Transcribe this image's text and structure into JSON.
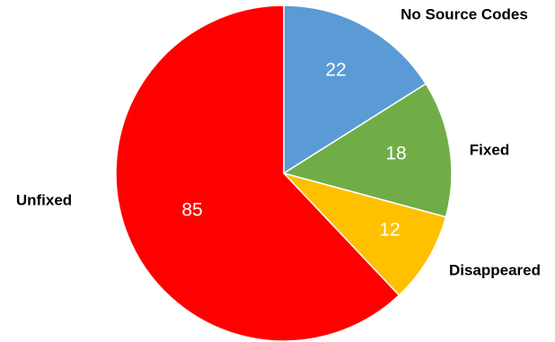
{
  "chart_data": {
    "type": "pie",
    "start_angle_deg": 0,
    "direction": "clockwise",
    "slices": [
      {
        "label": "No Source Codes",
        "value": 22,
        "color": "#5b9bd5"
      },
      {
        "label": "Fixed",
        "value": 18,
        "color": "#70ad47"
      },
      {
        "label": "Disappeared",
        "value": 12,
        "color": "#ffc000"
      },
      {
        "label": "Unfixed",
        "value": 85,
        "color": "#ff0000"
      }
    ]
  }
}
